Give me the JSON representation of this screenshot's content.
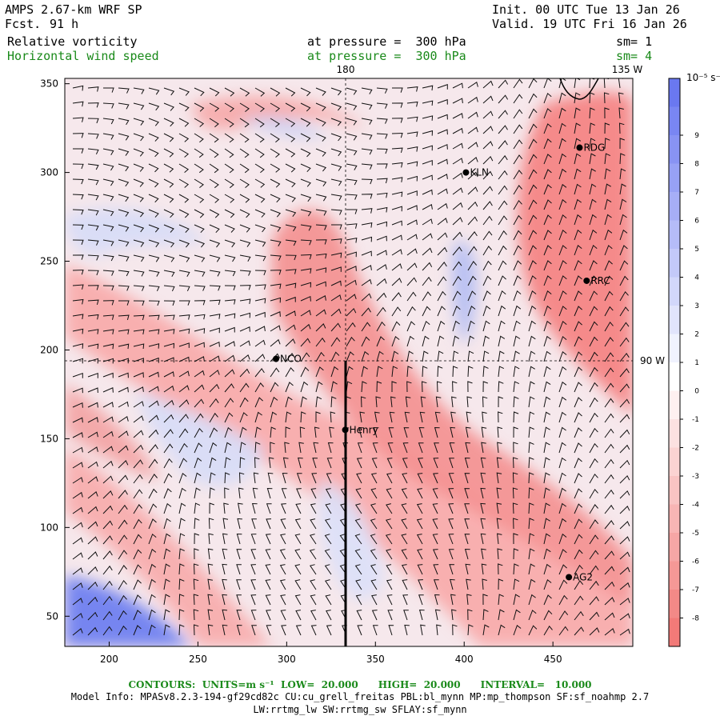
{
  "header": {
    "model": "AMPS 2.67-km WRF SP",
    "fcst_label": "Fcst.",
    "fcst_value": "91 h",
    "init": "Init. 00 UTC Tue 13 Jan 26",
    "valid": "Valid. 19 UTC Fri 16 Jan 26"
  },
  "fields": [
    {
      "name": "Relative vorticity",
      "level": "at pressure =  300 hPa",
      "sm": "sm= 1",
      "color": "#000000"
    },
    {
      "name": "Horizontal wind speed",
      "level": "at pressure =  300 hPa",
      "sm": "sm= 4",
      "color": "#1a8a1a"
    }
  ],
  "map": {
    "x_ticks": [
      "200",
      "250",
      "300",
      "350",
      "400",
      "450"
    ],
    "y_ticks": [
      "50",
      "100",
      "150",
      "200",
      "250",
      "300",
      "350"
    ],
    "x_range": [
      175,
      495
    ],
    "y_range": [
      33,
      353
    ],
    "meridian_labels": [
      "180",
      "135 W",
      "90 W"
    ],
    "stations": [
      {
        "name": "NCO",
        "x": 294,
        "y": 195
      },
      {
        "name": "KLN",
        "x": 401,
        "y": 300
      },
      {
        "name": "RDG",
        "x": 465,
        "y": 314
      },
      {
        "name": "RRC",
        "x": 469,
        "y": 239
      },
      {
        "name": "Henry",
        "x": 333,
        "y": 155
      },
      {
        "name": "AG2",
        "x": 459,
        "y": 72
      }
    ]
  },
  "colorbar": {
    "unit": "10⁻⁵ s⁻¹",
    "labels": [
      "9",
      "8",
      "7",
      "6",
      "5",
      "4",
      "3",
      "2",
      "1",
      "0",
      "-1",
      "-2",
      "-3",
      "-4",
      "-5",
      "-6",
      "-7",
      "-8"
    ],
    "positive_color": "#6a78f0",
    "negative_color": "#f27a78"
  },
  "footer": {
    "contours": "CONTOURS:  UNITS=m s⁻¹  LOW=  20.000      HIGH=  20.000      INTERVAL=   10.000",
    "model_info": "Model Info: MPASv8.2.3-194-gf29cd82c CU:cu_grell_freitas PBL:bl_mynn MP:mp_thompson SF:sf_noahmp 2.7",
    "model_info2": "LW:rrtmg_lw SW:rrtmg_sw SFLAY:sf_mynn"
  }
}
